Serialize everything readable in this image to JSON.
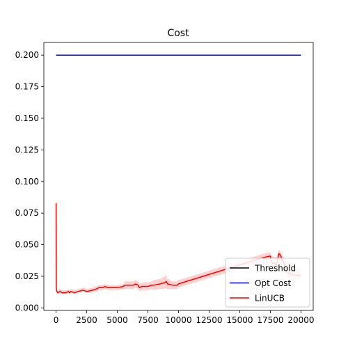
{
  "chart_data": {
    "type": "line",
    "title": "Cost",
    "xlabel": "",
    "ylabel": "",
    "xlim": [
      -1000,
      21000
    ],
    "ylim": [
      -0.002,
      0.21
    ],
    "xticks": [
      0,
      2500,
      5000,
      7500,
      10000,
      12500,
      15000,
      17500,
      20000
    ],
    "yticks": [
      0.0,
      0.025,
      0.05,
      0.075,
      0.1,
      0.125,
      0.15,
      0.175,
      0.2
    ],
    "xtick_labels": [
      "0",
      "2500",
      "5000",
      "7500",
      "10000",
      "12500",
      "15000",
      "17500",
      "20000"
    ],
    "ytick_labels": [
      "0.000",
      "0.025",
      "0.050",
      "0.075",
      "0.100",
      "0.125",
      "0.150",
      "0.175",
      "0.200"
    ],
    "grid": false,
    "legend_position": "lower-right",
    "series": [
      {
        "name": "Threshold",
        "color": "#000000",
        "x": [
          0,
          20000
        ],
        "y": [
          0.2,
          0.2
        ]
      },
      {
        "name": "Opt Cost",
        "color": "#0000ff",
        "x": [
          0,
          20000
        ],
        "y": [
          0.2,
          0.2
        ]
      },
      {
        "name": "LinUCB",
        "color": "#ff0000",
        "band_color": "#ffcccc",
        "x": [
          0,
          20,
          60,
          150,
          300,
          500,
          800,
          1000,
          1100,
          1200,
          1500,
          1800,
          2200,
          2500,
          3000,
          3300,
          3500,
          3800,
          4000,
          4200,
          4500,
          5000,
          5500,
          5600,
          6000,
          6300,
          6500,
          6700,
          6800,
          7000,
          7500,
          7800,
          8000,
          8500,
          8900,
          9000,
          9100,
          9500,
          9900,
          10000,
          11000,
          12000,
          13000,
          14000,
          15000,
          16000,
          17000,
          17500,
          17600,
          18000,
          18200,
          18300,
          19000,
          19500,
          20000
        ],
        "y": [
          0.083,
          0.016,
          0.013,
          0.012,
          0.013,
          0.012,
          0.012,
          0.013,
          0.012,
          0.013,
          0.012,
          0.013,
          0.014,
          0.013,
          0.014,
          0.015,
          0.016,
          0.016,
          0.017,
          0.016,
          0.016,
          0.016,
          0.017,
          0.018,
          0.018,
          0.018,
          0.019,
          0.018,
          0.016,
          0.017,
          0.017,
          0.018,
          0.018,
          0.019,
          0.02,
          0.021,
          0.019,
          0.018,
          0.018,
          0.019,
          0.022,
          0.025,
          0.028,
          0.031,
          0.034,
          0.037,
          0.04,
          0.041,
          0.036,
          0.034,
          0.043,
          0.042,
          0.027,
          0.026,
          0.026
        ],
        "y_lower": [
          0.079,
          0.014,
          0.011,
          0.011,
          0.012,
          0.011,
          0.011,
          0.012,
          0.011,
          0.012,
          0.011,
          0.012,
          0.013,
          0.012,
          0.012,
          0.013,
          0.014,
          0.014,
          0.015,
          0.014,
          0.014,
          0.014,
          0.015,
          0.015,
          0.015,
          0.015,
          0.016,
          0.015,
          0.013,
          0.014,
          0.014,
          0.015,
          0.014,
          0.015,
          0.015,
          0.016,
          0.015,
          0.015,
          0.015,
          0.016,
          0.019,
          0.022,
          0.025,
          0.028,
          0.031,
          0.034,
          0.037,
          0.038,
          0.031,
          0.028,
          0.037,
          0.036,
          0.023,
          0.022,
          0.022
        ],
        "y_upper": [
          0.089,
          0.018,
          0.015,
          0.014,
          0.015,
          0.014,
          0.014,
          0.015,
          0.014,
          0.015,
          0.014,
          0.015,
          0.016,
          0.015,
          0.016,
          0.017,
          0.018,
          0.018,
          0.019,
          0.018,
          0.018,
          0.018,
          0.019,
          0.021,
          0.021,
          0.021,
          0.022,
          0.021,
          0.019,
          0.02,
          0.02,
          0.021,
          0.022,
          0.023,
          0.025,
          0.026,
          0.023,
          0.021,
          0.021,
          0.022,
          0.025,
          0.028,
          0.031,
          0.034,
          0.037,
          0.04,
          0.043,
          0.044,
          0.041,
          0.04,
          0.046,
          0.045,
          0.033,
          0.031,
          0.031
        ]
      }
    ]
  }
}
